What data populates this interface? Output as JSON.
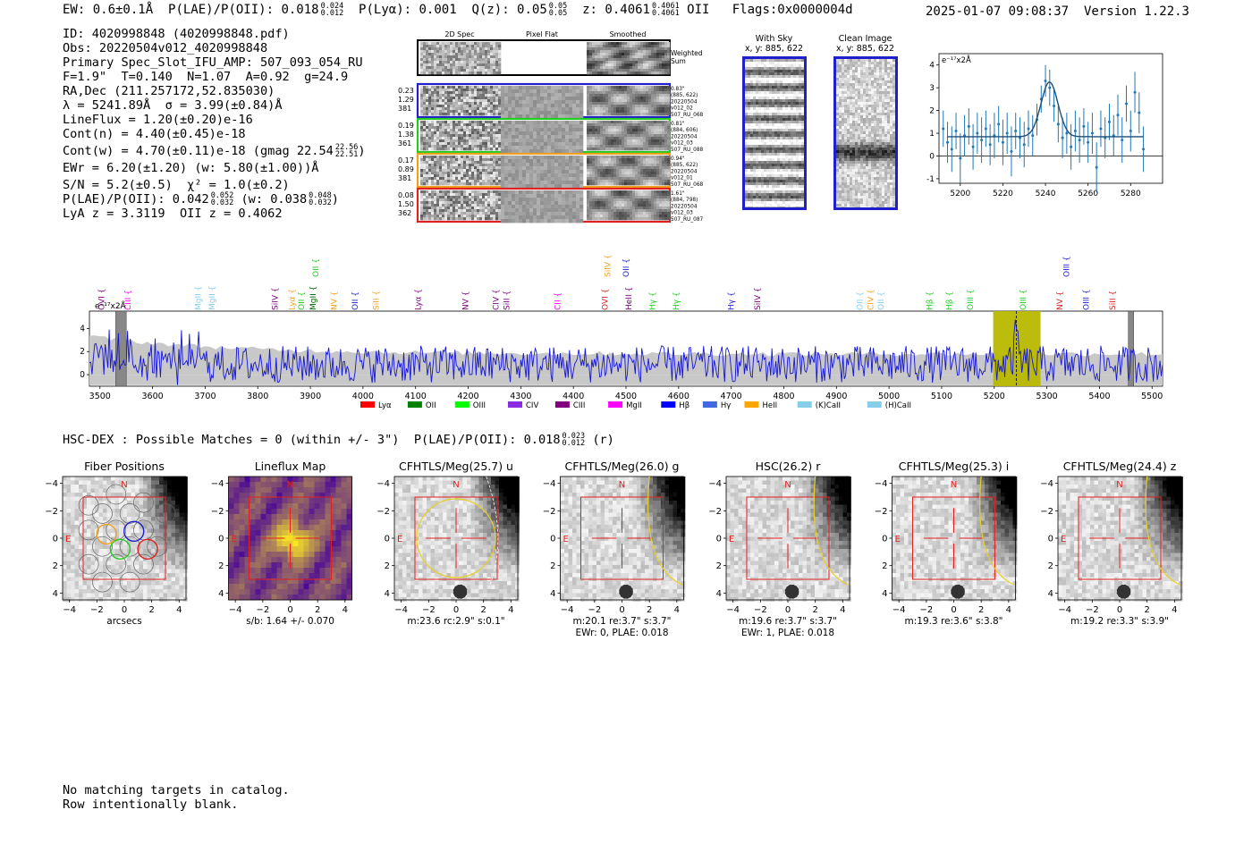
{
  "header": {
    "ew": "EW: 0.6±0.1Å",
    "plae_label": "P(LAE)/P(OII): 0.018",
    "plae_hi": "0.024",
    "plae_lo": "0.012",
    "plya": "P(Lyα): 0.001",
    "qz_label": "Q(z): 0.05",
    "qz_hi": "0.05",
    "qz_lo": "0.05",
    "z_label": "z: 0.4061",
    "z_hi": "0.4061",
    "z_lo": "0.4061",
    "z_line": "OII",
    "flags": "Flags:0x0000004d",
    "datetime": "2025-01-07 09:08:37",
    "version": "Version 1.22.3"
  },
  "info": {
    "id": "ID: 4020998848 (4020998848.pdf)",
    "obs": "Obs: 20220504v012_4020998848",
    "primary": "Primary Spec_Slot_IFU_AMP: 507_093_054_RU",
    "params": "F=1.9\"  T=0.140  N=1.07  A=0.92  g=24.9",
    "radec": "RA,Dec (211.257172,52.835030)",
    "lambda": "λ = 5241.89Å  σ = 3.99(±0.84)Å",
    "lineflux": "LineFlux = 1.20(±0.20)e-16",
    "contn": "Cont(n) = 4.40(±0.45)e-18",
    "contw": "Cont(w) = 4.70(±0.11)e-18 (gmag 22.54",
    "contw_hi": "22.56",
    "contw_lo": "22.51",
    "contw_end": ")",
    "ewr": "EWr = 6.20(±1.20) (w: 5.80(±1.00))Å",
    "sn": "S/N = 5.2(±0.5)  χ² = 1.0(±0.2)",
    "plae": "P(LAE)/P(OII): 0.042",
    "plae_hi": "0.052",
    "plae_lo": "0.032",
    "plae_w": "(w: 0.038",
    "plae_w_hi": "0.048",
    "plae_w_lo": "0.032",
    "plae_w_end": ")",
    "lya": "LyA z = 3.3119  OII z = 0.4062"
  },
  "spec2d": {
    "col_titles": [
      "2D Spec",
      "Pixel Flat",
      "Smoothed"
    ],
    "weighted_label": "Weighted Sum",
    "rows": [
      {
        "left": [
          "0.23",
          "1.29",
          "381"
        ],
        "right": [
          "0.83\"",
          "(885, 622)",
          "20220504",
          "v012_02",
          "507_RU_068"
        ],
        "color": "#1f1fcc"
      },
      {
        "left": [
          "0.19",
          "1.38",
          "361"
        ],
        "right": [
          "0.81\"",
          "(884, 606)",
          "20220504",
          "v012_03",
          "507_RU_088"
        ],
        "color": "#22cc22"
      },
      {
        "left": [
          "0.17",
          "0.89",
          "381"
        ],
        "right": [
          "0.94\"",
          "(885, 622)",
          "20220504",
          "v012_01",
          "507_RU_068"
        ],
        "color": "#f0a020"
      },
      {
        "left": [
          "0.08",
          "1.50",
          "362"
        ],
        "right": [
          "1.61\"",
          "(884, 798)",
          "20220504",
          "v012_03",
          "507_RU_087"
        ],
        "color": "#dd2222"
      }
    ]
  },
  "withsky": {
    "title": "With Sky",
    "coords": "x, y: 885, 622"
  },
  "cleanimg": {
    "title": "Clean Image",
    "coords": "x, y: 885, 622"
  },
  "chart_data": [
    {
      "type": "line",
      "title": "",
      "unit_label": "e⁻¹⁷x2Å",
      "xlim": [
        5190,
        5295
      ],
      "ylim": [
        -1.2,
        4.5
      ],
      "xticks": [
        5200,
        5220,
        5240,
        5260,
        5280
      ],
      "yticks": [
        -1,
        0,
        1,
        2,
        3,
        4
      ],
      "points": [
        {
          "x": 5192,
          "y": 1.2,
          "e": 0.8
        },
        {
          "x": 5194,
          "y": 0.6,
          "e": 0.9
        },
        {
          "x": 5196,
          "y": 0.3,
          "e": 1.0
        },
        {
          "x": 5198,
          "y": 1.1,
          "e": 0.8
        },
        {
          "x": 5200,
          "y": -0.1,
          "e": 1.1
        },
        {
          "x": 5202,
          "y": 0.9,
          "e": 0.9
        },
        {
          "x": 5204,
          "y": 1.3,
          "e": 0.8
        },
        {
          "x": 5206,
          "y": 0.4,
          "e": 1.0
        },
        {
          "x": 5208,
          "y": 1.0,
          "e": 0.9
        },
        {
          "x": 5210,
          "y": 0.7,
          "e": 1.0
        },
        {
          "x": 5212,
          "y": 1.2,
          "e": 0.8
        },
        {
          "x": 5214,
          "y": 0.5,
          "e": 0.9
        },
        {
          "x": 5216,
          "y": 0.9,
          "e": 1.0
        },
        {
          "x": 5218,
          "y": 1.4,
          "e": 0.8
        },
        {
          "x": 5220,
          "y": 0.6,
          "e": 1.0
        },
        {
          "x": 5222,
          "y": 1.0,
          "e": 0.9
        },
        {
          "x": 5224,
          "y": 0.2,
          "e": 1.1
        },
        {
          "x": 5226,
          "y": 1.1,
          "e": 0.8
        },
        {
          "x": 5228,
          "y": 0.8,
          "e": 0.9
        },
        {
          "x": 5230,
          "y": 0.5,
          "e": 1.0
        },
        {
          "x": 5232,
          "y": 1.2,
          "e": 0.8
        },
        {
          "x": 5234,
          "y": 0.9,
          "e": 0.9
        },
        {
          "x": 5236,
          "y": 1.6,
          "e": 0.7
        },
        {
          "x": 5238,
          "y": 2.5,
          "e": 0.6
        },
        {
          "x": 5240,
          "y": 3.3,
          "e": 0.7
        },
        {
          "x": 5242,
          "y": 3.0,
          "e": 0.8
        },
        {
          "x": 5244,
          "y": 2.2,
          "e": 0.7
        },
        {
          "x": 5246,
          "y": 1.4,
          "e": 0.8
        },
        {
          "x": 5248,
          "y": 0.8,
          "e": 0.9
        },
        {
          "x": 5250,
          "y": 1.0,
          "e": 0.9
        },
        {
          "x": 5252,
          "y": 0.4,
          "e": 1.0
        },
        {
          "x": 5254,
          "y": 1.1,
          "e": 0.9
        },
        {
          "x": 5256,
          "y": 0.7,
          "e": 1.0
        },
        {
          "x": 5258,
          "y": 1.3,
          "e": 0.8
        },
        {
          "x": 5260,
          "y": 0.6,
          "e": 0.9
        },
        {
          "x": 5262,
          "y": 1.0,
          "e": 0.9
        },
        {
          "x": 5264,
          "y": -0.5,
          "e": 1.1
        },
        {
          "x": 5266,
          "y": 1.2,
          "e": 0.8
        },
        {
          "x": 5268,
          "y": 0.8,
          "e": 0.9
        },
        {
          "x": 5270,
          "y": 1.5,
          "e": 0.8
        },
        {
          "x": 5272,
          "y": 0.9,
          "e": 0.9
        },
        {
          "x": 5274,
          "y": 1.8,
          "e": 0.9
        },
        {
          "x": 5276,
          "y": 0.7,
          "e": 1.0
        },
        {
          "x": 5278,
          "y": 2.3,
          "e": 0.8
        },
        {
          "x": 5280,
          "y": 1.1,
          "e": 0.9
        },
        {
          "x": 5282,
          "y": 2.8,
          "e": 0.9
        },
        {
          "x": 5284,
          "y": 1.9,
          "e": 0.9
        },
        {
          "x": 5286,
          "y": 0.3,
          "e": 1.0
        }
      ],
      "model": {
        "continuum": 0.85,
        "peak": 3.25,
        "center": 5241.9,
        "sigma": 3.99
      }
    },
    {
      "type": "line",
      "title": "",
      "unit_label": "e⁻¹⁷x2Å",
      "xlim": [
        3480,
        5520
      ],
      "ylim": [
        -1,
        5.5
      ],
      "xticks": [
        3500,
        3600,
        3700,
        3800,
        3900,
        4000,
        4100,
        4200,
        4300,
        4400,
        4500,
        4600,
        4700,
        4800,
        4900,
        5000,
        5100,
        5200,
        5300,
        5400,
        5500
      ],
      "yticks": [
        0,
        2,
        4
      ],
      "highlight": [
        5198,
        5288
      ],
      "detection": 5242,
      "masked": [
        [
          3530,
          3550
        ],
        [
          5455,
          5465
        ]
      ],
      "line_labels": [
        {
          "name": "OVI",
          "x": 3508,
          "color": "#800080"
        },
        {
          "name": "CIII",
          "x": 3558,
          "color": "#ff00ff"
        },
        {
          "name": "MgII",
          "x": 3692,
          "color": "#87ceeb"
        },
        {
          "name": "MgII",
          "x": 3718,
          "color": "#87ceeb"
        },
        {
          "name": "SiIV",
          "x": 3838,
          "color": "#800080"
        },
        {
          "name": "Lyα",
          "x": 3870,
          "color": "#f0a020"
        },
        {
          "name": "OII",
          "x": 3888,
          "color": "#22cc22"
        },
        {
          "name": "MgII",
          "x": 3910,
          "color": "#006400"
        },
        {
          "name": "NV",
          "x": 3950,
          "color": "#f0a020"
        },
        {
          "name": "OII",
          "x": 3990,
          "color": "#1f1fcc"
        },
        {
          "name": "SiII",
          "x": 4030,
          "color": "#f0a020"
        },
        {
          "name": "Lyα",
          "x": 4110,
          "color": "#800080"
        },
        {
          "name": "NV",
          "x": 4200,
          "color": "#800080"
        },
        {
          "name": "CIV",
          "x": 4258,
          "color": "#800080"
        },
        {
          "name": "SiII",
          "x": 4278,
          "color": "#800080"
        },
        {
          "name": "CII",
          "x": 4375,
          "color": "#ff00ff"
        },
        {
          "name": "OVI",
          "x": 4465,
          "color": "#dd2222"
        },
        {
          "name": "HeII",
          "x": 4510,
          "color": "#800080"
        },
        {
          "name": "Hγ",
          "x": 4555,
          "color": "#22cc22"
        },
        {
          "name": "Hγ",
          "x": 4600,
          "color": "#22cc22"
        },
        {
          "name": "Hγ",
          "x": 4705,
          "color": "#1f1fcc"
        },
        {
          "name": "SiIV",
          "x": 4755,
          "color": "#800080"
        },
        {
          "name": "OII",
          "x": 4950,
          "color": "#87ceeb"
        },
        {
          "name": "CIV",
          "x": 4970,
          "color": "#f0a020"
        },
        {
          "name": "OII",
          "x": 4990,
          "color": "#87ceeb"
        },
        {
          "name": "Hβ",
          "x": 5082,
          "color": "#22cc22"
        },
        {
          "name": "Hβ",
          "x": 5120,
          "color": "#22cc22"
        },
        {
          "name": "OIII",
          "x": 5160,
          "color": "#22cc22"
        },
        {
          "name": "OIII",
          "x": 5260,
          "color": "#22cc22"
        },
        {
          "name": "NV",
          "x": 5330,
          "color": "#dd2222"
        },
        {
          "name": "OIII",
          "x": 5380,
          "color": "#1f1fcc"
        },
        {
          "name": "SiII",
          "x": 5430,
          "color": "#dd2222"
        }
      ],
      "upper_labels": [
        {
          "name": "OII",
          "x": 3915,
          "color": "#22cc22"
        },
        {
          "name": "SiIV",
          "x": 4470,
          "color": "#f0a020"
        },
        {
          "name": "OII",
          "x": 4505,
          "color": "#1f1fcc"
        },
        {
          "name": "OIII",
          "x": 5342,
          "color": "#1f1fcc"
        }
      ],
      "legend": [
        {
          "name": "Lyα",
          "color": "#ff0000"
        },
        {
          "name": "OII",
          "color": "#008000"
        },
        {
          "name": "OIII",
          "color": "#00ff00"
        },
        {
          "name": "CIV",
          "color": "#8a2be2"
        },
        {
          "name": "CIII",
          "color": "#800080"
        },
        {
          "name": "MgII",
          "color": "#ff00ff"
        },
        {
          "name": "Hβ",
          "color": "#0000ff"
        },
        {
          "name": "Hγ",
          "color": "#4169e1"
        },
        {
          "name": "HeII",
          "color": "#ffa500"
        },
        {
          "name": "(K)CaII",
          "color": "#87ceeb"
        },
        {
          "name": "(H)CaII",
          "color": "#87ceeb"
        }
      ]
    }
  ],
  "hsc": {
    "label": "HSC-DEX : Possible Matches = 0 (within +/- 3\")  P(LAE)/P(OII): 0.018",
    "hi": "0.023",
    "lo": "0.012",
    "end": "(r)"
  },
  "cutouts": {
    "tick_labels": [
      "−4",
      "−2",
      "0",
      "2",
      "4"
    ],
    "panels": [
      {
        "title": "Fiber Positions",
        "caption1": "arcsecs",
        "caption2": "",
        "kind": "fiber"
      },
      {
        "title": "Lineflux Map",
        "caption1": "s/b: 1.64 +/- 0.070",
        "caption2": "",
        "kind": "lineflux"
      },
      {
        "title": "CFHTLS/Meg(25.7) u",
        "caption1": "m:23.6 rc:2.9\"  s:0.1\"",
        "caption2": "",
        "kind": "img"
      },
      {
        "title": "CFHTLS/Meg(26.0) g",
        "caption1": "m:20.1  re:3.7\"  s:3.7\"",
        "caption2": "EWr: 0, PLAE: 0.018",
        "kind": "img"
      },
      {
        "title": "HSC(26.2) r",
        "caption1": "m:19.6  re:3.7\"  s:3.7\"",
        "caption2": "EWr: 1, PLAE: 0.018",
        "kind": "img"
      },
      {
        "title": "CFHTLS/Meg(25.3) i",
        "caption1": "m:19.3  re:3.6\"  s:3.8\"",
        "caption2": "",
        "kind": "img"
      },
      {
        "title": "CFHTLS/Meg(24.4) z",
        "caption1": "m:19.2  re:3.3\"  s:3.9\"",
        "caption2": "",
        "kind": "img"
      }
    ],
    "compass_n": "N",
    "compass_e": "E"
  },
  "footer": {
    "line1": "No matching targets in catalog.",
    "line2": "Row intentionally blank."
  }
}
